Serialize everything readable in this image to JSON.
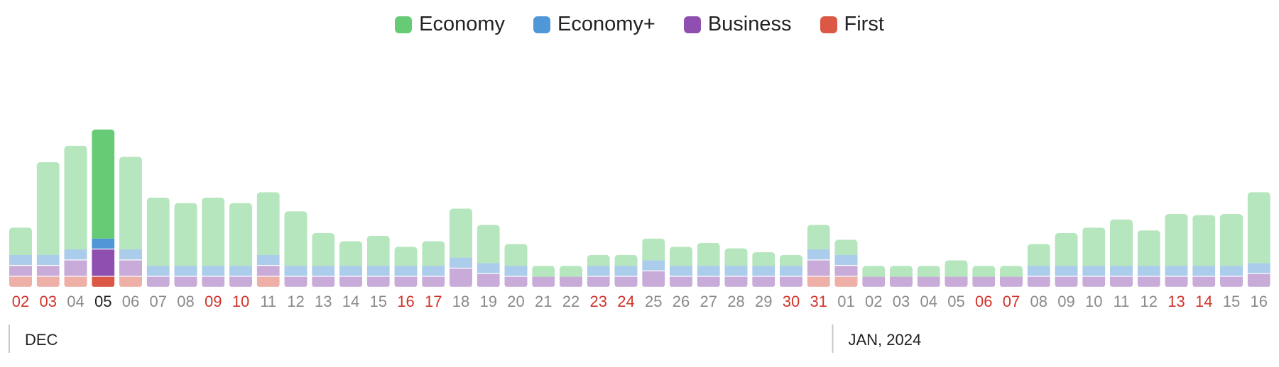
{
  "chart_data": {
    "type": "bar",
    "stacked": true,
    "legend_position": "top-center",
    "grid": false,
    "categories": [
      "02",
      "03",
      "04",
      "05",
      "06",
      "07",
      "08",
      "09",
      "10",
      "11",
      "12",
      "13",
      "14",
      "15",
      "16",
      "17",
      "18",
      "19",
      "20",
      "21",
      "22",
      "23",
      "24",
      "25",
      "26",
      "27",
      "28",
      "29",
      "30",
      "31",
      "01",
      "02",
      "03",
      "04",
      "05",
      "06",
      "07",
      "08",
      "09",
      "10",
      "11",
      "12",
      "13",
      "14",
      "15",
      "16"
    ],
    "highlight_index": 3,
    "red_ticks": [
      0,
      1,
      7,
      8,
      14,
      15,
      21,
      22,
      28,
      29,
      35,
      36,
      42,
      43
    ],
    "series": [
      {
        "name": "First",
        "color": "#db5844",
        "values": [
          2,
          2,
          2,
          2,
          2,
          0,
          0,
          0,
          0,
          2,
          0,
          0,
          0,
          0,
          0,
          0,
          0,
          0,
          0,
          0,
          0,
          0,
          0,
          0,
          0,
          0,
          0,
          0,
          0,
          2,
          2,
          0,
          0,
          0,
          0,
          0,
          0,
          0,
          0,
          0,
          0,
          0,
          0,
          0,
          0,
          0
        ]
      },
      {
        "name": "Business",
        "color": "#8e4fb0",
        "values": [
          2,
          2,
          3,
          5,
          3,
          2,
          2,
          2,
          2,
          2,
          2,
          2,
          2,
          2,
          2,
          2,
          3.5,
          2.5,
          2,
          2,
          2,
          2,
          2,
          3,
          2,
          2,
          2,
          2,
          2,
          3,
          2,
          2,
          2,
          2,
          2,
          2,
          2,
          2,
          2,
          2,
          2,
          2,
          2,
          2,
          2,
          2.5
        ]
      },
      {
        "name": "Economy+",
        "color": "#4f97d6",
        "values": [
          2,
          2,
          2,
          2,
          2,
          2,
          2,
          2,
          2,
          2,
          2,
          2,
          2,
          2,
          2,
          2,
          2,
          2,
          2,
          0,
          0,
          2,
          2,
          2,
          2,
          2,
          2,
          2,
          2,
          2,
          2,
          0,
          0,
          0,
          0,
          0,
          0,
          2,
          2,
          2,
          2,
          2,
          2,
          2,
          2,
          2
        ]
      },
      {
        "name": "Economy",
        "color": "#67cb75",
        "values": [
          5,
          17,
          19,
          20,
          17,
          12.5,
          11.5,
          12.5,
          11.5,
          11.5,
          10,
          6,
          4.5,
          5.5,
          3.5,
          4.5,
          9,
          7,
          4,
          2,
          2,
          2,
          2,
          4,
          3.5,
          4.2,
          3.2,
          2.5,
          2,
          4.5,
          2.8,
          2,
          2,
          2,
          3,
          2,
          2,
          4,
          6,
          7,
          8.5,
          6.5,
          9.5,
          9.3,
          9.5,
          13
        ]
      }
    ],
    "month_labels": [
      {
        "label": "DEC",
        "start_index": 0
      },
      {
        "label": "JAN, 2024",
        "start_index": 30
      }
    ]
  }
}
